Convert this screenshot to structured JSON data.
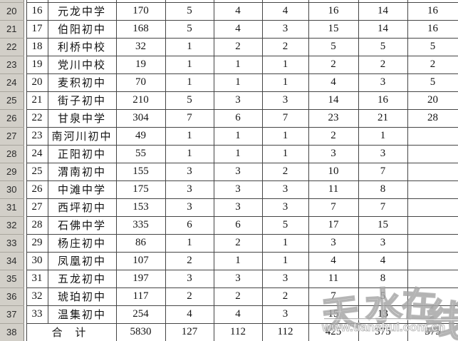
{
  "spreadsheet": {
    "columns": {
      "row_header_width": 33,
      "spacer_width": 4,
      "widths": [
        30,
        96,
        69,
        68,
        68,
        65,
        70,
        69,
        71
      ]
    },
    "rows": [
      {
        "row_header": "20",
        "seq": "16",
        "name": "元龙中学",
        "values": [
          "170",
          "5",
          "4",
          "4",
          "16",
          "14",
          "16"
        ]
      },
      {
        "row_header": "21",
        "seq": "17",
        "name": "伯阳初中",
        "values": [
          "168",
          "5",
          "4",
          "3",
          "15",
          "14",
          "16"
        ]
      },
      {
        "row_header": "22",
        "seq": "18",
        "name": "利桥中校",
        "values": [
          "32",
          "1",
          "2",
          "2",
          "5",
          "5",
          "5"
        ]
      },
      {
        "row_header": "23",
        "seq": "19",
        "name": "党川中校",
        "values": [
          "19",
          "1",
          "1",
          "1",
          "2",
          "2",
          "2"
        ]
      },
      {
        "row_header": "24",
        "seq": "20",
        "name": "麦积初中",
        "values": [
          "70",
          "1",
          "1",
          "1",
          "4",
          "3",
          "5"
        ]
      },
      {
        "row_header": "25",
        "seq": "21",
        "name": "街子初中",
        "values": [
          "210",
          "5",
          "3",
          "3",
          "14",
          "16",
          "20"
        ]
      },
      {
        "row_header": "26",
        "seq": "22",
        "name": "甘泉中学",
        "values": [
          "304",
          "7",
          "6",
          "7",
          "23",
          "21",
          "28"
        ]
      },
      {
        "row_header": "27",
        "seq": "23",
        "name": "南河川初中",
        "values": [
          "49",
          "1",
          "1",
          "1",
          "2",
          "1",
          ""
        ]
      },
      {
        "row_header": "28",
        "seq": "24",
        "name": "正阳初中",
        "values": [
          "55",
          "1",
          "1",
          "1",
          "3",
          "3",
          ""
        ]
      },
      {
        "row_header": "29",
        "seq": "25",
        "name": "渭南初中",
        "values": [
          "155",
          "3",
          "3",
          "2",
          "10",
          "7",
          ""
        ]
      },
      {
        "row_header": "30",
        "seq": "26",
        "name": "中滩中学",
        "values": [
          "175",
          "3",
          "3",
          "3",
          "11",
          "8",
          ""
        ]
      },
      {
        "row_header": "31",
        "seq": "27",
        "name": "西坪初中",
        "values": [
          "153",
          "3",
          "3",
          "3",
          "7",
          "7",
          ""
        ]
      },
      {
        "row_header": "32",
        "seq": "28",
        "name": "石佛中学",
        "values": [
          "335",
          "6",
          "6",
          "5",
          "17",
          "15",
          ""
        ]
      },
      {
        "row_header": "33",
        "seq": "29",
        "name": "杨庄初中",
        "values": [
          "86",
          "1",
          "2",
          "1",
          "3",
          "3",
          ""
        ]
      },
      {
        "row_header": "34",
        "seq": "30",
        "name": "凤凰初中",
        "values": [
          "107",
          "2",
          "1",
          "1",
          "4",
          "4",
          ""
        ]
      },
      {
        "row_header": "35",
        "seq": "31",
        "name": "五龙初中",
        "values": [
          "197",
          "3",
          "3",
          "3",
          "11",
          "8",
          ""
        ]
      },
      {
        "row_header": "36",
        "seq": "32",
        "name": "琥珀初中",
        "values": [
          "117",
          "2",
          "2",
          "2",
          "7",
          "5",
          ""
        ]
      },
      {
        "row_header": "37",
        "seq": "33",
        "name": "温集初中",
        "values": [
          "254",
          "4",
          "4",
          "3",
          "15",
          "13",
          ""
        ]
      },
      {
        "row_header": "38",
        "seq": null,
        "name": "合 计",
        "total": true,
        "values": [
          "5830",
          "127",
          "112",
          "112",
          "425",
          "375",
          "375"
        ]
      }
    ]
  },
  "watermark": {
    "site_name": "天水在线",
    "site_chars": [
      "天",
      "水",
      "在",
      "线"
    ],
    "url": "www.tianshui.com.cn"
  },
  "colors": {
    "row_header_bg": "#d2cfc8",
    "gridline": "#454545",
    "cell_text": "#141414",
    "watermark_stroke": "#949494"
  }
}
